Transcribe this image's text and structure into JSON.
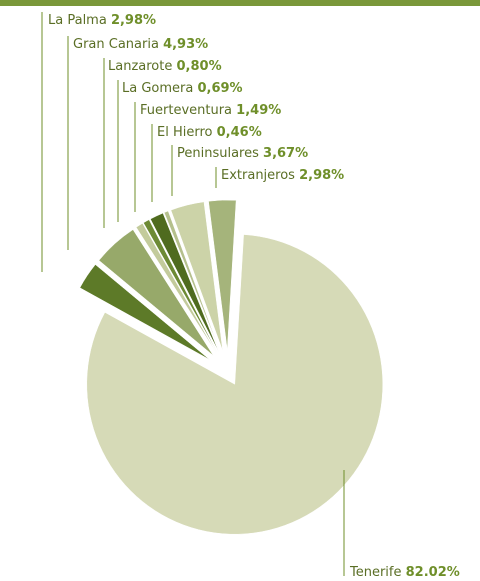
{
  "chart_data": {
    "type": "pie",
    "categories": [
      "La Palma",
      "Gran Canaria",
      "Lanzarote",
      "La Gomera",
      "Fuerteventura",
      "El Hierro",
      "Peninsulares",
      "Extranjeros",
      "Tenerife"
    ],
    "values": [
      2.98,
      4.93,
      0.8,
      0.69,
      1.49,
      0.46,
      3.67,
      2.98,
      82.02
    ],
    "value_labels": [
      "2,98%",
      "4,93%",
      "0,80%",
      "0,69%",
      "1,49%",
      "0,46%",
      "3,67%",
      "2,98%",
      "82.02%"
    ],
    "colors": [
      "#5d7a28",
      "#97a96a",
      "#c3cb9c",
      "#6d8a34",
      "#4f6b1f",
      "#b5c08d",
      "#ccd3a8",
      "#a5b47b",
      "#d6dab7"
    ]
  }
}
